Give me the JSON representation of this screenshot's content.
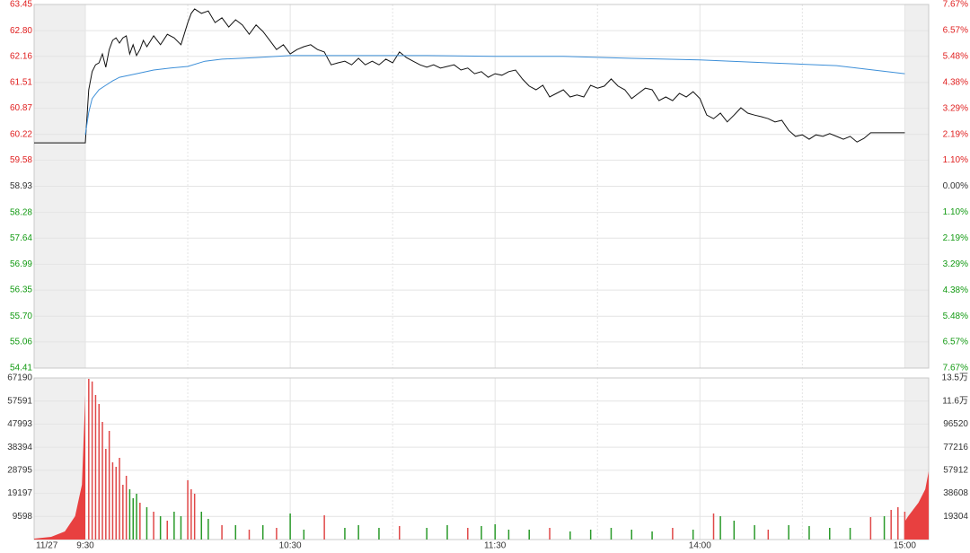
{
  "chart_data": [
    {
      "type": "line",
      "xlim": [
        -15,
        247
      ],
      "xticks": [
        {
          "value": -15,
          "label": "11/27"
        },
        {
          "value": 0,
          "label": "9:30"
        },
        {
          "value": 60,
          "label": "10:30"
        },
        {
          "value": 120,
          "label": "11:30"
        },
        {
          "value": 180,
          "label": "14:00"
        },
        {
          "value": 240,
          "label": "15:00"
        }
      ],
      "minor_xticks": [
        30,
        90,
        150,
        210
      ],
      "ylim": [
        54.41,
        63.45
      ],
      "yticks": [
        63.45,
        {
          "value": 62.8,
          "label": "62.80"
        },
        62.16,
        61.51,
        60.87,
        60.22,
        59.58,
        58.93,
        58.28,
        57.64,
        56.99,
        56.35,
        {
          "value": 55.7,
          "label": "55.70"
        },
        55.06,
        54.41
      ],
      "y2lim": [
        -7.67,
        7.67
      ],
      "y2ticks": [
        {
          "value": 7.67,
          "label": "7.67%"
        },
        {
          "value": 6.57,
          "label": "6.57%"
        },
        {
          "value": 5.48,
          "label": "5.48%"
        },
        {
          "value": 4.38,
          "label": "4.38%"
        },
        {
          "value": 3.29,
          "label": "3.29%"
        },
        {
          "value": 2.19,
          "label": "2.19%"
        },
        {
          "value": 1.1,
          "label": "1.10%"
        },
        {
          "value": 0,
          "label": "0.00%"
        },
        {
          "value": -1.1,
          "label": "1.10%"
        },
        {
          "value": -2.19,
          "label": "2.19%"
        },
        {
          "value": -3.29,
          "label": "3.29%"
        },
        {
          "value": -4.38,
          "label": "4.38%"
        },
        {
          "value": -5.48,
          "label": "5.48%"
        },
        {
          "value": -6.57,
          "label": "6.57%"
        },
        {
          "value": -7.67,
          "label": "7.67%"
        }
      ],
      "up_color": "#e02020",
      "down_color": "#129a12",
      "grid": true,
      "series": [
        {
          "color": "#111111",
          "x": [
            -15,
            0,
            1,
            2,
            3,
            4,
            5,
            6,
            7,
            8,
            9,
            10,
            11,
            12,
            13,
            14,
            15,
            16,
            17,
            18,
            20,
            22,
            24,
            26,
            28,
            30,
            31,
            32,
            34,
            36,
            38,
            40,
            42,
            44,
            46,
            48,
            50,
            52,
            54,
            56,
            58,
            60,
            62,
            64,
            66,
            68,
            70,
            72,
            74,
            76,
            78,
            80,
            82,
            84,
            86,
            88,
            90,
            92,
            94,
            96,
            98,
            100,
            102,
            104,
            106,
            108,
            110,
            112,
            114,
            116,
            118,
            120,
            122,
            124,
            126,
            128,
            130,
            132,
            134,
            136,
            138,
            140,
            142,
            144,
            146,
            148,
            150,
            152,
            154,
            156,
            158,
            160,
            162,
            164,
            166,
            168,
            170,
            172,
            174,
            176,
            178,
            180,
            182,
            184,
            186,
            188,
            190,
            192,
            194,
            196,
            198,
            200,
            202,
            204,
            206,
            208,
            210,
            212,
            214,
            216,
            218,
            220,
            222,
            224,
            226,
            228,
            230,
            232,
            236,
            240
          ],
          "values": [
            60.01,
            60.01,
            61.33,
            61.78,
            61.95,
            62.0,
            62.22,
            61.89,
            62.33,
            62.56,
            62.62,
            62.49,
            62.62,
            62.67,
            62.22,
            62.45,
            62.18,
            62.33,
            62.56,
            62.4,
            62.67,
            62.45,
            62.71,
            62.62,
            62.45,
            63.0,
            63.23,
            63.34,
            63.23,
            63.29,
            63.0,
            63.12,
            62.89,
            63.07,
            62.94,
            62.71,
            62.94,
            62.78,
            62.56,
            62.33,
            62.45,
            62.22,
            62.33,
            62.4,
            62.45,
            62.33,
            62.27,
            61.95,
            62.0,
            62.04,
            61.95,
            62.11,
            61.95,
            62.04,
            61.95,
            62.09,
            62.0,
            62.27,
            62.13,
            62.04,
            61.95,
            61.89,
            61.95,
            61.87,
            61.91,
            61.95,
            61.82,
            61.87,
            61.73,
            61.78,
            61.64,
            61.73,
            61.69,
            61.78,
            61.82,
            61.6,
            61.42,
            61.33,
            61.44,
            61.15,
            61.24,
            61.33,
            61.15,
            61.2,
            61.15,
            61.44,
            61.37,
            61.42,
            61.6,
            61.42,
            61.33,
            61.11,
            61.24,
            61.37,
            61.33,
            61.06,
            61.15,
            61.06,
            61.24,
            61.15,
            61.28,
            61.11,
            60.7,
            60.61,
            60.75,
            60.53,
            60.7,
            60.88,
            60.75,
            60.7,
            60.66,
            60.61,
            60.53,
            60.57,
            60.32,
            60.17,
            60.21,
            60.1,
            60.21,
            60.17,
            60.24,
            60.17,
            60.1,
            60.17,
            60.03,
            60.12,
            60.26,
            60.26,
            60.26,
            60.26
          ]
        },
        {
          "color": "#3d8fd8",
          "x": [
            0,
            1,
            2,
            4,
            6,
            8,
            10,
            15,
            20,
            25,
            30,
            35,
            40,
            50,
            60,
            80,
            100,
            120,
            140,
            160,
            180,
            200,
            220,
            240
          ],
          "values": [
            60.21,
            60.77,
            61.11,
            61.33,
            61.44,
            61.55,
            61.64,
            61.73,
            61.82,
            61.87,
            61.91,
            62.04,
            62.09,
            62.13,
            62.18,
            62.18,
            62.18,
            62.16,
            62.16,
            62.11,
            62.07,
            62.0,
            61.93,
            61.73
          ]
        }
      ]
    },
    {
      "type": "bar",
      "xlim": [
        -15,
        247
      ],
      "ylim": [
        0,
        67190
      ],
      "yticks": [
        67190,
        57591,
        47993,
        38394,
        28795,
        19197,
        9598
      ],
      "y2lim": [
        0,
        135128
      ],
      "y2ticks": [
        {
          "value": 135128,
          "label": "13.5万"
        },
        {
          "value": 115824,
          "label": "11.6万"
        },
        96520,
        77216,
        57912,
        38608,
        19304
      ],
      "grid": true,
      "series": [
        {
          "color": "#e04848",
          "x": [
            1,
            2,
            3,
            4,
            5,
            6,
            7,
            8,
            9,
            10,
            11,
            12,
            16,
            20,
            24,
            30,
            31,
            32,
            40,
            48,
            56,
            70,
            92,
            112,
            136,
            172,
            184,
            200,
            230,
            236,
            238,
            240
          ],
          "values": [
            66820,
            65700,
            60100,
            56370,
            48900,
            37700,
            45170,
            32100,
            30240,
            33970,
            22770,
            26500,
            15300,
            11570,
            7840,
            24640,
            20900,
            19040,
            5970,
            4110,
            4850,
            10080,
            5600,
            4850,
            4850,
            4850,
            10830,
            4110,
            9330,
            12320,
            13440,
            11570
          ]
        },
        {
          "color": "#2a9a2a",
          "x": [
            13,
            14,
            15,
            18,
            22,
            26,
            28,
            34,
            36,
            44,
            52,
            60,
            64,
            76,
            80,
            86,
            100,
            106,
            116,
            120,
            124,
            130,
            142,
            148,
            154,
            160,
            166,
            178,
            186,
            190,
            196,
            206,
            212,
            218,
            224,
            234
          ],
          "values": [
            20900,
            17170,
            19040,
            13440,
            9710,
            11570,
            9710,
            11570,
            8590,
            5970,
            5970,
            10830,
            4110,
            4850,
            5970,
            4850,
            4850,
            5970,
            5600,
            6350,
            4110,
            4110,
            3360,
            4110,
            4850,
            4110,
            3360,
            4110,
            9710,
            7840,
            5970,
            5970,
            5600,
            4850,
            4850,
            9710
          ]
        },
        {
          "type": "area",
          "axis": "y2",
          "color": "#e84040",
          "x": [
            -15,
            -10,
            -6,
            -3,
            -1,
            0
          ],
          "values": [
            750,
            2250,
            6760,
            19520,
            45790,
            120860
          ]
        },
        {
          "type": "area",
          "axis": "y2",
          "color": "#e84040",
          "x": [
            240,
            241,
            244,
            246,
            247
          ],
          "values": [
            15000,
            19520,
            30780,
            42040,
            57050
          ]
        }
      ]
    }
  ]
}
